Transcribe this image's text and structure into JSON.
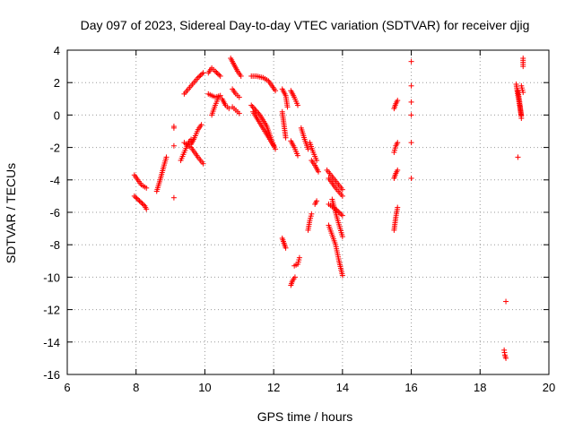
{
  "chart_data": {
    "type": "scatter",
    "title": "Day 097 of 2023, Sidereal Day-to-day VTEC variation (SDTVAR) for receiver djig",
    "xlabel": "GPS time / hours",
    "ylabel": "SDTVAR / TECUs",
    "xlim": [
      6,
      20
    ],
    "ylim": [
      -16,
      4
    ],
    "xticks": [
      6,
      8,
      10,
      12,
      14,
      16,
      18,
      20
    ],
    "yticks": [
      -16,
      -14,
      -12,
      -10,
      -8,
      -6,
      -4,
      -2,
      0,
      2,
      4
    ],
    "grid": true,
    "marker": "+",
    "color": "#ff0000",
    "series": [
      {
        "segments": [
          [
            [
              7.95,
              -3.7
            ],
            [
              8.05,
              -4.0
            ],
            [
              8.15,
              -4.3
            ],
            [
              8.3,
              -4.5
            ]
          ],
          [
            [
              7.95,
              -5.0
            ],
            [
              8.1,
              -5.3
            ],
            [
              8.25,
              -5.6
            ],
            [
              8.3,
              -5.8
            ]
          ],
          [
            [
              8.6,
              -4.7
            ],
            [
              8.7,
              -4.0
            ],
            [
              8.8,
              -3.2
            ],
            [
              8.88,
              -2.6
            ]
          ],
          [
            [
              9.1,
              -0.7
            ],
            [
              9.1,
              -0.8
            ]
          ],
          [
            [
              9.1,
              -1.9
            ]
          ],
          [
            [
              9.1,
              -5.1
            ]
          ],
          [
            [
              9.3,
              -2.8
            ],
            [
              9.4,
              -2.3
            ],
            [
              9.5,
              -1.8
            ],
            [
              9.6,
              -1.5
            ]
          ],
          [
            [
              9.4,
              -1.7
            ],
            [
              9.6,
              -2.0
            ],
            [
              9.8,
              -2.6
            ],
            [
              9.95,
              -3.0
            ]
          ],
          [
            [
              9.6,
              -1.8
            ],
            [
              9.7,
              -1.4
            ],
            [
              9.8,
              -0.9
            ],
            [
              9.9,
              -0.6
            ]
          ],
          [
            [
              9.4,
              1.3
            ],
            [
              9.6,
              1.8
            ],
            [
              9.8,
              2.3
            ],
            [
              9.95,
              2.6
            ]
          ],
          [
            [
              10.1,
              2.6
            ],
            [
              10.2,
              2.9
            ],
            [
              10.3,
              2.7
            ],
            [
              10.45,
              2.4
            ]
          ],
          [
            [
              10.1,
              1.3
            ],
            [
              10.2,
              1.2
            ],
            [
              10.3,
              1.1
            ],
            [
              10.45,
              1.2
            ]
          ],
          [
            [
              10.2,
              0.0
            ],
            [
              10.3,
              0.6
            ],
            [
              10.4,
              1.1
            ]
          ],
          [
            [
              10.5,
              1.0
            ],
            [
              10.6,
              0.6
            ],
            [
              10.7,
              0.4
            ]
          ],
          [
            [
              10.75,
              3.5
            ],
            [
              10.85,
              3.1
            ],
            [
              10.95,
              2.7
            ],
            [
              11.05,
              2.4
            ]
          ],
          [
            [
              10.8,
              1.6
            ],
            [
              10.9,
              1.3
            ],
            [
              11.0,
              1.1
            ]
          ],
          [
            [
              10.8,
              0.5
            ],
            [
              10.9,
              0.3
            ],
            [
              11.0,
              0.1
            ]
          ],
          [
            [
              11.35,
              2.4
            ],
            [
              11.5,
              2.4
            ],
            [
              11.7,
              2.3
            ],
            [
              11.85,
              2.1
            ],
            [
              12.05,
              1.5
            ]
          ],
          [
            [
              11.35,
              0.6
            ],
            [
              11.6,
              0.0
            ],
            [
              11.8,
              -0.7
            ],
            [
              11.95,
              -1.6
            ],
            [
              12.05,
              -2.1
            ]
          ],
          [
            [
              11.4,
              0.2
            ],
            [
              11.6,
              -0.5
            ],
            [
              11.8,
              -1.2
            ],
            [
              12.0,
              -1.9
            ]
          ],
          [
            [
              12.25,
              1.6
            ],
            [
              12.35,
              1.2
            ],
            [
              12.4,
              0.5
            ]
          ],
          [
            [
              12.25,
              0.2
            ],
            [
              12.3,
              -0.6
            ],
            [
              12.35,
              -1.4
            ]
          ],
          [
            [
              12.5,
              1.5
            ],
            [
              12.6,
              1.1
            ],
            [
              12.7,
              0.6
            ]
          ],
          [
            [
              12.5,
              -1.6
            ],
            [
              12.6,
              -2.0
            ],
            [
              12.7,
              -2.5
            ]
          ],
          [
            [
              12.8,
              -0.8
            ],
            [
              12.9,
              -1.5
            ],
            [
              13.0,
              -2.1
            ]
          ],
          [
            [
              13.05,
              -1.7
            ],
            [
              13.15,
              -2.3
            ],
            [
              13.25,
              -2.8
            ]
          ],
          [
            [
              12.25,
              -7.6
            ],
            [
              12.3,
              -7.9
            ],
            [
              12.35,
              -8.2
            ]
          ],
          [
            [
              12.5,
              -10.5
            ],
            [
              12.55,
              -10.2
            ],
            [
              12.62,
              -10.0
            ]
          ],
          [
            [
              12.6,
              -9.3
            ],
            [
              12.7,
              -9.2
            ],
            [
              12.75,
              -8.8
            ]
          ],
          [
            [
              13.0,
              -7.1
            ],
            [
              13.05,
              -6.5
            ],
            [
              13.1,
              -6.1
            ]
          ],
          [
            [
              13.2,
              -5.5
            ],
            [
              13.25,
              -5.3
            ]
          ],
          [
            [
              13.1,
              -2.8
            ],
            [
              13.2,
              -3.1
            ],
            [
              13.3,
              -3.5
            ]
          ],
          [
            [
              13.55,
              -3.4
            ],
            [
              13.7,
              -3.8
            ],
            [
              13.85,
              -4.2
            ],
            [
              14.0,
              -4.6
            ]
          ],
          [
            [
              13.6,
              -3.9
            ],
            [
              13.8,
              -4.5
            ],
            [
              14.0,
              -5.0
            ]
          ],
          [
            [
              13.6,
              -5.5
            ],
            [
              13.8,
              -5.8
            ],
            [
              14.0,
              -6.2
            ]
          ],
          [
            [
              13.6,
              -6.8
            ],
            [
              13.8,
              -8.0
            ],
            [
              13.9,
              -9.0
            ],
            [
              14.0,
              -9.9
            ]
          ],
          [
            [
              13.7,
              -5.2
            ],
            [
              13.85,
              -6.4
            ],
            [
              14.0,
              -7.5
            ]
          ],
          [
            [
              15.5,
              0.4
            ],
            [
              15.55,
              0.7
            ],
            [
              15.6,
              0.9
            ]
          ],
          [
            [
              15.5,
              -2.3
            ],
            [
              15.55,
              -1.9
            ],
            [
              15.6,
              -1.7
            ]
          ],
          [
            [
              15.5,
              -3.9
            ],
            [
              15.55,
              -3.6
            ],
            [
              15.6,
              -3.4
            ]
          ],
          [
            [
              15.5,
              -7.1
            ],
            [
              15.55,
              -6.3
            ],
            [
              15.6,
              -5.7
            ]
          ],
          [
            [
              16.0,
              3.3
            ]
          ],
          [
            [
              16.0,
              1.8
            ]
          ],
          [
            [
              16.0,
              0.8
            ]
          ],
          [
            [
              16.0,
              0.0
            ]
          ],
          [
            [
              16.0,
              -1.7
            ]
          ],
          [
            [
              16.0,
              -3.9
            ]
          ],
          [
            [
              18.75,
              -11.5
            ]
          ],
          [
            [
              18.7,
              -14.5
            ],
            [
              18.72,
              -14.8
            ],
            [
              18.75,
              -15.0
            ]
          ],
          [
            [
              19.05,
              1.9
            ],
            [
              19.1,
              1.2
            ],
            [
              19.15,
              0.6
            ],
            [
              19.2,
              0.0
            ]
          ],
          [
            [
              19.1,
              1.5
            ],
            [
              19.15,
              0.8
            ],
            [
              19.2,
              -0.2
            ]
          ],
          [
            [
              19.1,
              -2.6
            ]
          ],
          [
            [
              19.25,
              3.5
            ],
            [
              19.25,
              3.0
            ]
          ],
          [
            [
              19.2,
              1.8
            ],
            [
              19.25,
              1.4
            ]
          ]
        ]
      }
    ]
  }
}
